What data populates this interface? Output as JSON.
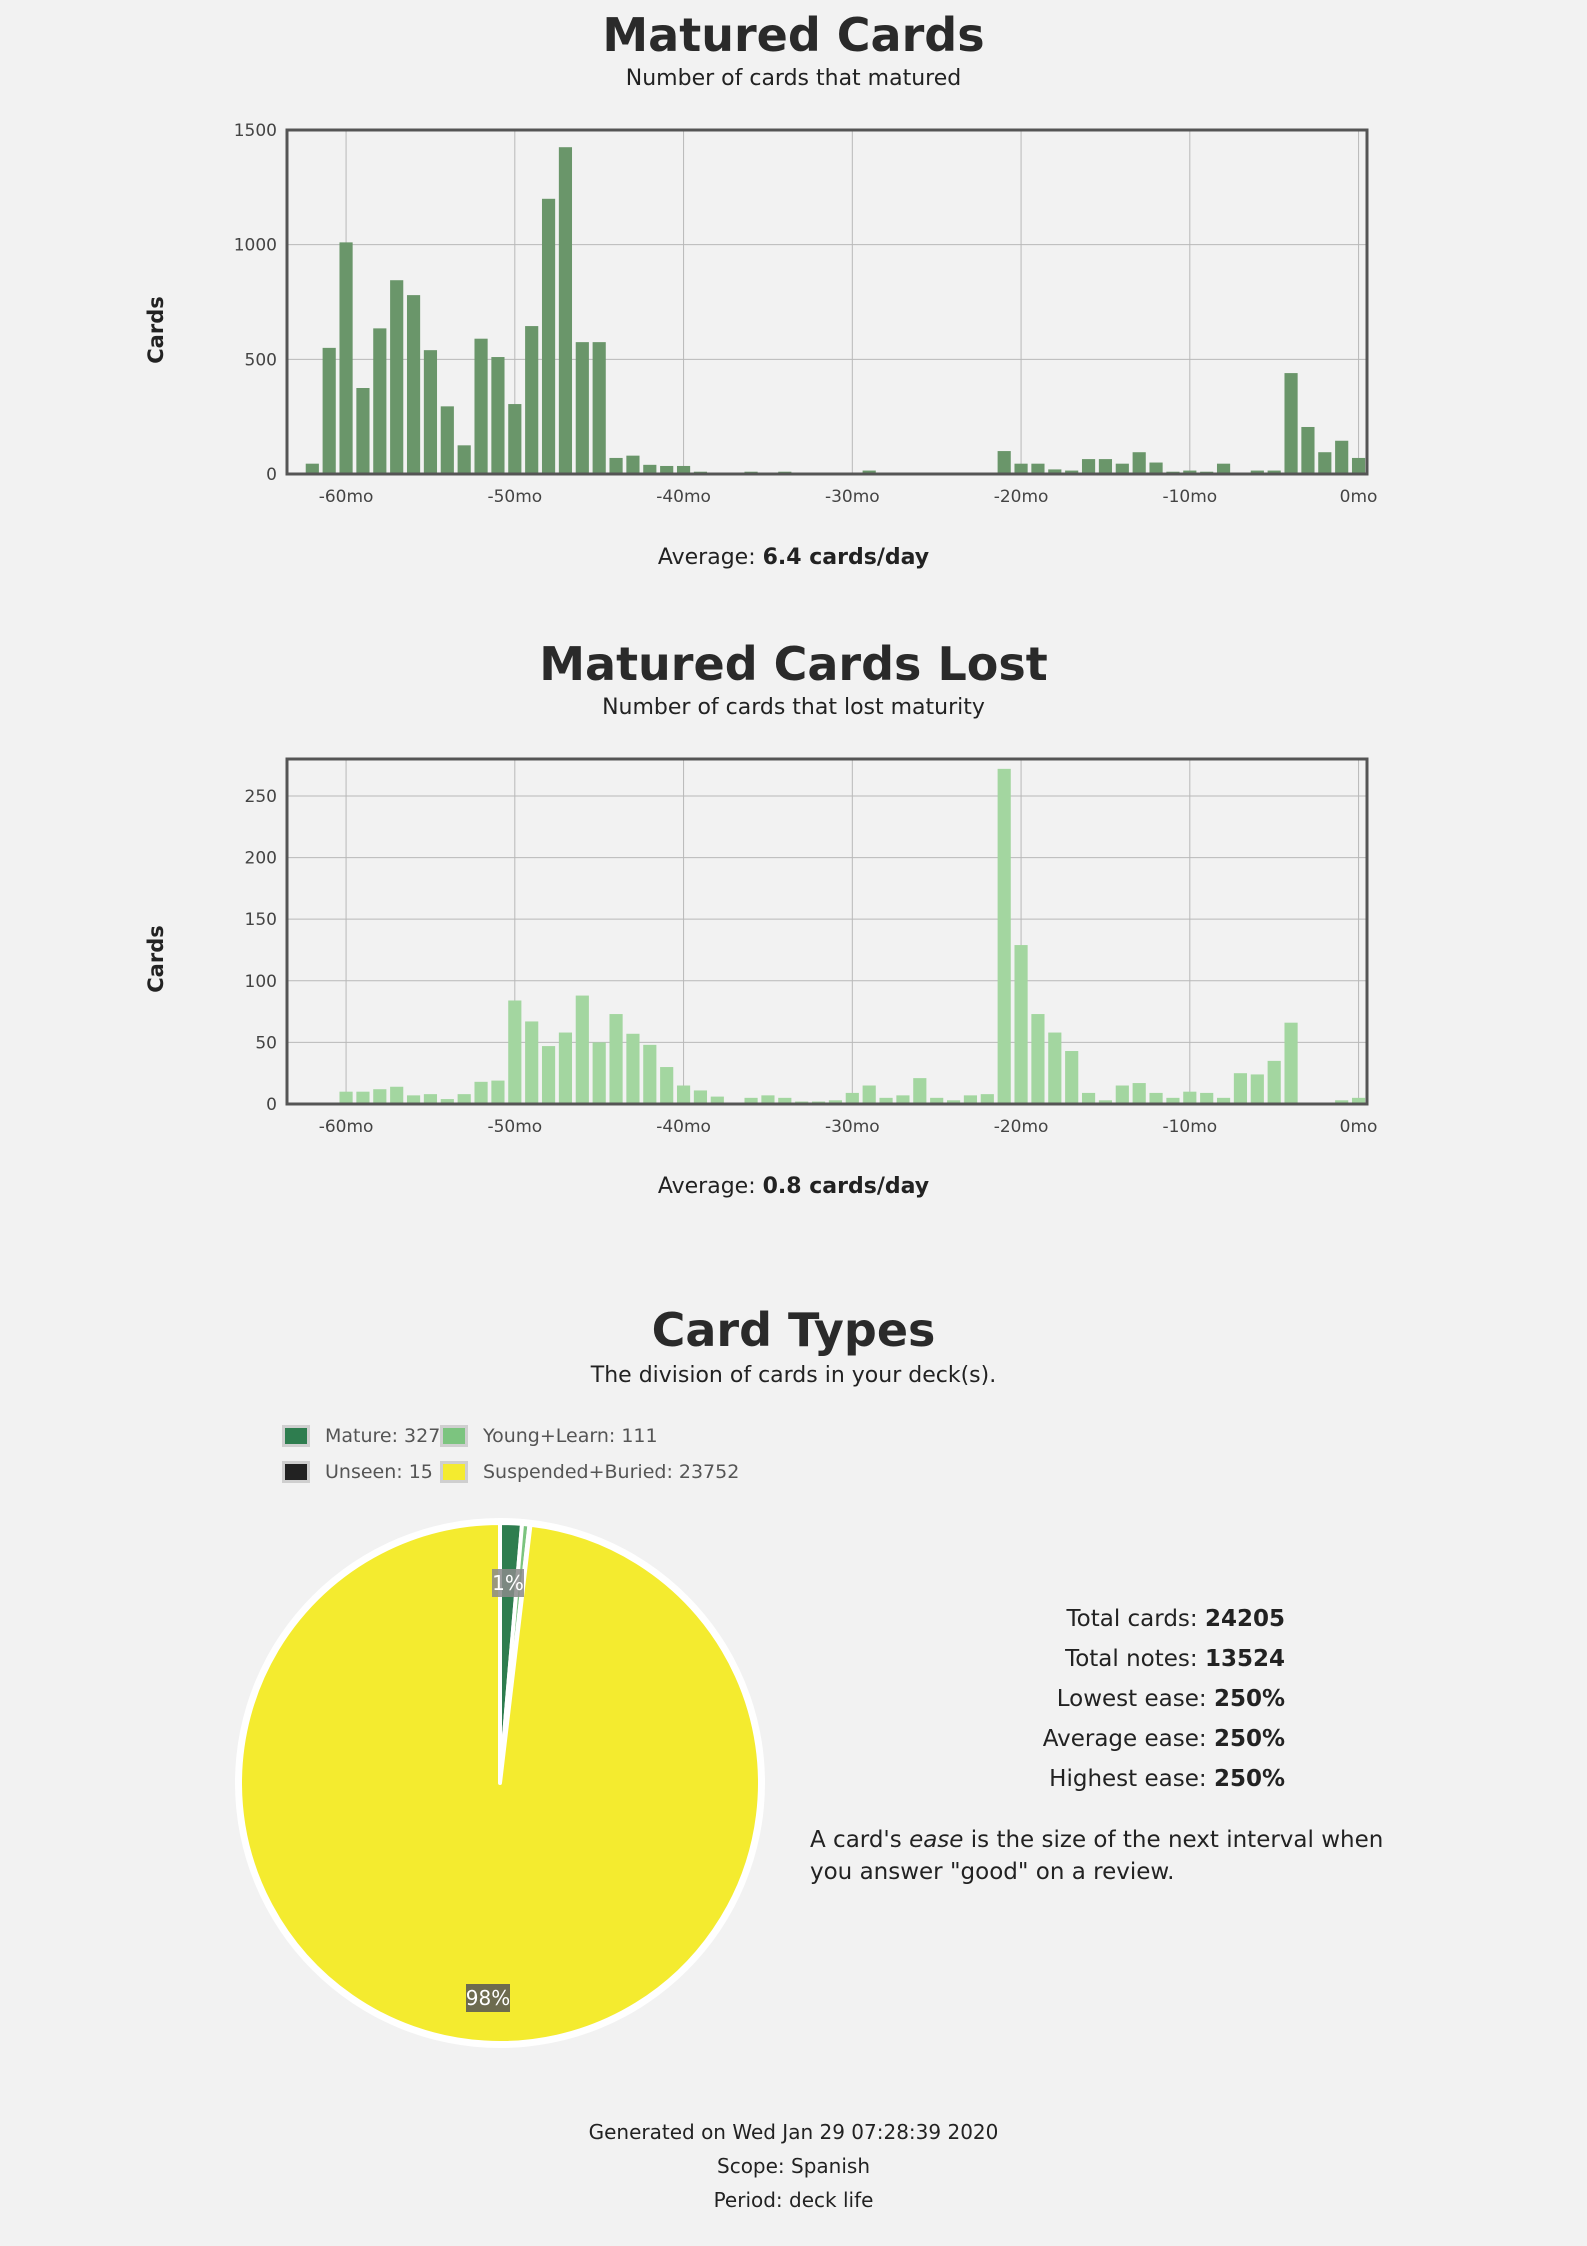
{
  "matured": {
    "title": "Matured Cards",
    "subtitle": "Number of cards that matured",
    "ylabel": "Cards",
    "average_label": "Average:",
    "average_value": "6.4 cards/day"
  },
  "lost": {
    "title": "Matured Cards Lost",
    "subtitle": "Number of cards that lost maturity",
    "ylabel": "Cards",
    "average_label": "Average:",
    "average_value": "0.8 cards/day"
  },
  "types": {
    "title": "Card Types",
    "subtitle": "The division of cards in your deck(s).",
    "legend": [
      {
        "label": "Mature: 327",
        "color": "#2e7d4f"
      },
      {
        "label": "Young+Learn: 111",
        "color": "#7cc47f"
      },
      {
        "label": "Unseen: 15",
        "color": "#222222"
      },
      {
        "label": "Suspended+Buried: 23752",
        "color": "#f4eb2f"
      }
    ],
    "stats": [
      {
        "label": "Total cards:",
        "value": "24205"
      },
      {
        "label": "Total notes:",
        "value": "13524"
      },
      {
        "label": "Lowest ease:",
        "value": "250%"
      },
      {
        "label": "Average ease:",
        "value": "250%"
      },
      {
        "label": "Highest ease:",
        "value": "250%"
      }
    ],
    "note_pre": "A card's ",
    "note_em": "ease",
    "note_post": " is the size of the next interval when you answer \"good\" on a review."
  },
  "footer": {
    "generated": "Generated on Wed Jan 29 07:28:39 2020",
    "scope": "Scope: Spanish",
    "period": "Period: deck life"
  },
  "chart_data": [
    {
      "type": "bar",
      "title": "Matured Cards",
      "subtitle": "Number of cards that matured",
      "ylabel": "Cards",
      "xlim": [
        -63.5,
        0.5
      ],
      "ylim": [
        0,
        1500
      ],
      "xticks": [
        -60,
        -50,
        -40,
        -30,
        -20,
        -10,
        0
      ],
      "xtick_labels": [
        "-60mo",
        "-50mo",
        "-40mo",
        "-30mo",
        "-20mo",
        "-10mo",
        "0mo"
      ],
      "yticks": [
        0,
        500,
        1000,
        1500
      ],
      "grid": true,
      "color": "#6a966a",
      "x": [
        -62,
        -61,
        -60,
        -59,
        -58,
        -57,
        -56,
        -55,
        -54,
        -53,
        -52,
        -51,
        -50,
        -49,
        -48,
        -47,
        -46,
        -45,
        -44,
        -43,
        -42,
        -41,
        -40,
        -39,
        -38,
        -37,
        -36,
        -35,
        -34,
        -33,
        -32,
        -31,
        -30,
        -29,
        -28,
        -27,
        -26,
        -25,
        -24,
        -23,
        -22,
        -21,
        -20,
        -19,
        -18,
        -17,
        -16,
        -15,
        -14,
        -13,
        -12,
        -11,
        -10,
        -9,
        -8,
        -7,
        -6,
        -5,
        -4,
        -3,
        -2,
        -1,
        0
      ],
      "values": [
        45,
        550,
        1010,
        375,
        635,
        845,
        780,
        540,
        295,
        125,
        590,
        510,
        305,
        645,
        1200,
        1425,
        575,
        575,
        70,
        80,
        40,
        35,
        35,
        10,
        5,
        5,
        10,
        5,
        10,
        5,
        5,
        5,
        5,
        15,
        5,
        5,
        5,
        5,
        5,
        5,
        5,
        100,
        45,
        45,
        20,
        15,
        65,
        65,
        45,
        95,
        50,
        10,
        15,
        10,
        45,
        5,
        15,
        15,
        440,
        205,
        95,
        145,
        70
      ]
    },
    {
      "type": "bar",
      "title": "Matured Cards Lost",
      "subtitle": "Number of cards that lost maturity",
      "ylabel": "Cards",
      "xlim": [
        -63.5,
        0.5
      ],
      "ylim": [
        0,
        280
      ],
      "xticks": [
        -60,
        -50,
        -40,
        -30,
        -20,
        -10,
        0
      ],
      "xtick_labels": [
        "-60mo",
        "-50mo",
        "-40mo",
        "-30mo",
        "-20mo",
        "-10mo",
        "0mo"
      ],
      "yticks": [
        0,
        50,
        100,
        150,
        200,
        250
      ],
      "grid": true,
      "color": "#a3d6a0",
      "x": [
        -62,
        -61,
        -60,
        -59,
        -58,
        -57,
        -56,
        -55,
        -54,
        -53,
        -52,
        -51,
        -50,
        -49,
        -48,
        -47,
        -46,
        -45,
        -44,
        -43,
        -42,
        -41,
        -40,
        -39,
        -38,
        -37,
        -36,
        -35,
        -34,
        -33,
        -32,
        -31,
        -30,
        -29,
        -28,
        -27,
        -26,
        -25,
        -24,
        -23,
        -22,
        -21,
        -20,
        -19,
        -18,
        -17,
        -16,
        -15,
        -14,
        -13,
        -12,
        -11,
        -10,
        -9,
        -8,
        -7,
        -6,
        -5,
        -4,
        -3,
        -2,
        -1,
        0
      ],
      "values": [
        0,
        0,
        10,
        10,
        12,
        14,
        7,
        8,
        4,
        8,
        18,
        19,
        84,
        67,
        47,
        58,
        88,
        50,
        73,
        57,
        48,
        30,
        15,
        11,
        6,
        0,
        5,
        7,
        5,
        2,
        2,
        3,
        9,
        15,
        5,
        7,
        21,
        5,
        3,
        7,
        8,
        272,
        129,
        73,
        58,
        43,
        9,
        3,
        15,
        17,
        9,
        5,
        10,
        9,
        5,
        25,
        24,
        35,
        66,
        0,
        0,
        3,
        5
      ]
    },
    {
      "type": "pie",
      "title": "Card Types",
      "subtitle": "The division of cards in your deck(s).",
      "legend_position": "top-left",
      "labels": [
        "Mature",
        "Young+Learn",
        "Unseen",
        "Suspended+Buried"
      ],
      "values": [
        327,
        111,
        15,
        23752
      ],
      "colors": [
        "#2e7d4f",
        "#7cc47f",
        "#222222",
        "#f4eb2f"
      ],
      "slice_labels": [
        "1%",
        "",
        "",
        "98%"
      ]
    }
  ]
}
